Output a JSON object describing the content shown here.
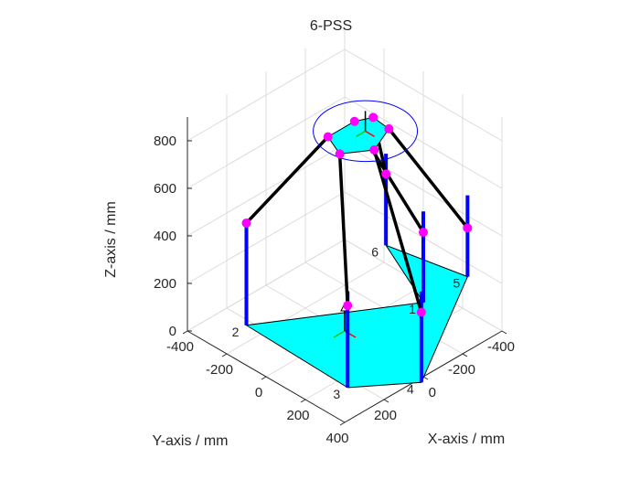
{
  "chart_data": {
    "type": "3d-mechanism",
    "title": "6-PSS",
    "xlabel": "X-axis  / mm",
    "ylabel": "Y-axis  / mm",
    "zlabel": "Z-axis  / mm",
    "xlim": [
      -400,
      400
    ],
    "ylim": [
      -400,
      400
    ],
    "zlim": [
      0,
      900
    ],
    "xticks": [
      -400,
      -200,
      0,
      200,
      400
    ],
    "yticks": [
      -400,
      -200,
      0,
      200
    ],
    "zticks": [
      0,
      200,
      400,
      600,
      800
    ],
    "grid": true,
    "base_vertex_labels": [
      "1",
      "2",
      "3",
      "4",
      "5",
      "6"
    ],
    "colors": {
      "base_fill": "#00ffff",
      "platform_fill": "#00ffff",
      "joint": "#ff00ff",
      "rail": "#0000ff",
      "link": "#000000",
      "circle": "#0000ff"
    },
    "base": [
      {
        "label": "1",
        "x": 75,
        "y": -325,
        "z": 0
      },
      {
        "label": "2",
        "x": -275,
        "y": 225,
        "z": 0
      },
      {
        "label": "3",
        "x": 255,
        "y": 240,
        "z": 0
      },
      {
        "label": "4",
        "x": 420,
        "y": 30,
        "z": 0
      },
      {
        "label": "5",
        "x": 75,
        "y": -550,
        "z": 0
      },
      {
        "label": "6",
        "x": -270,
        "y": -480,
        "z": 0
      }
    ],
    "sliders_z": [
      295,
      430,
      345,
      295,
      205,
      300
    ],
    "rail_height": 250,
    "platform_center": {
      "x": 10,
      "y": -95,
      "z": 800
    },
    "platform": [
      {
        "x": -60,
        "y": -110,
        "z": 800
      },
      {
        "x": -60,
        "y": 25,
        "z": 800
      },
      {
        "x": 45,
        "y": 70,
        "z": 800
      },
      {
        "x": 115,
        "y": -35,
        "z": 800
      },
      {
        "x": 60,
        "y": -165,
        "z": 800
      },
      {
        "x": -30,
        "y": -175,
        "z": 800
      }
    ],
    "platform_circle_radius": 190,
    "legs": [
      {
        "base": "1",
        "platform": 0
      },
      {
        "base": "2",
        "platform": 1
      },
      {
        "base": "3",
        "platform": 2
      },
      {
        "base": "4",
        "platform": 3
      },
      {
        "base": "5",
        "platform": 4
      },
      {
        "base": "6",
        "platform": 5
      }
    ]
  }
}
